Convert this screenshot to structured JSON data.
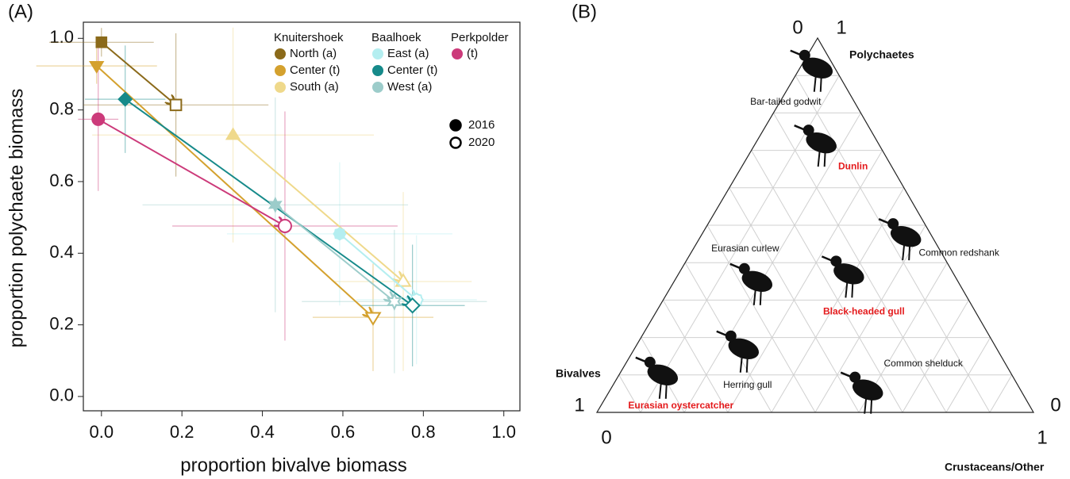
{
  "chart_data": [
    {
      "type": "scatter",
      "panel_label": "(A)",
      "xlabel": "proportion bivalve biomass",
      "ylabel": "proportion polychaete biomass",
      "xlim": [
        -0.045,
        1.04
      ],
      "ylim": [
        -0.04,
        1.045
      ],
      "xticks": [
        {
          "value": 0,
          "label": "0.0"
        },
        {
          "value": 0.2,
          "label": "0.2"
        },
        {
          "value": 0.4,
          "label": "0.4"
        },
        {
          "value": 0.6,
          "label": "0.6"
        },
        {
          "value": 0.8,
          "label": "0.8"
        },
        {
          "value": 1,
          "label": "1.0"
        }
      ],
      "yticks": [
        {
          "value": 0,
          "label": "0.0"
        },
        {
          "value": 0.2,
          "label": "0.2"
        },
        {
          "value": 0.4,
          "label": "0.4"
        },
        {
          "value": 0.6,
          "label": "0.6"
        },
        {
          "value": 0.8,
          "label": "0.8"
        },
        {
          "value": 1,
          "label": "1.0"
        }
      ],
      "year_labels": [
        "2016",
        "2020"
      ],
      "groups": [
        {
          "name": "Knuitershoek",
          "series": [
            {
              "name": "North (a)",
              "color": "#8b6a1a",
              "marker": "square",
              "x": [
                0.0,
                0.185
              ],
              "y": [
                0.989,
                0.814
              ],
              "x_err": [
                0.13,
                0.23
              ],
              "y_err": [
                0.04,
                0.2
              ]
            },
            {
              "name": "Center (t)",
              "color": "#d4a12e",
              "marker": "triangle-down",
              "x": [
                -0.012,
                0.675
              ],
              "y": [
                0.923,
                0.221
              ],
              "x_err": [
                0.15,
                0.15
              ],
              "y_err": [
                0.05,
                0.15
              ]
            },
            {
              "name": "South (a)",
              "color": "#efd98b",
              "marker": "triangle-up",
              "x": [
                0.327,
                0.75
              ],
              "y": [
                0.73,
                0.321
              ],
              "x_err": [
                0.35,
                0.17
              ],
              "y_err": [
                0.3,
                0.25
              ]
            }
          ]
        },
        {
          "name": "Baalhoek",
          "series": [
            {
              "name": "East (a)",
              "color": "#b4eef0",
              "marker": "octagon",
              "x": [
                0.592,
                0.783
              ],
              "y": [
                0.454,
                0.27
              ],
              "x_err": [
                0.28,
                0.15
              ],
              "y_err": [
                0.2,
                0.18
              ]
            },
            {
              "name": "Center (t)",
              "color": "#168a8a",
              "marker": "diamond",
              "x": [
                0.059,
                0.773
              ],
              "y": [
                0.83,
                0.254
              ],
              "x_err": [
                0.1,
                0.13
              ],
              "y_err": [
                0.15,
                0.17
              ]
            },
            {
              "name": "West (a)",
              "color": "#9cccca",
              "marker": "star",
              "x": [
                0.432,
                0.728
              ],
              "y": [
                0.535,
                0.265
              ],
              "x_err": [
                0.33,
                0.23
              ],
              "y_err": [
                0.3,
                0.2
              ]
            }
          ]
        },
        {
          "name": "Perkpolder",
          "series": [
            {
              "name": "(t)",
              "color": "#cc3a7a",
              "marker": "circle",
              "x": [
                -0.008,
                0.456
              ],
              "y": [
                0.774,
                0.476
              ],
              "x_err": [
                0.05,
                0.28
              ],
              "y_err": [
                0.2,
                0.32
              ]
            }
          ]
        }
      ]
    },
    {
      "type": "ternary",
      "panel_label": "(B)",
      "grid": true,
      "axes": [
        "Polychaetes",
        "Bivalves",
        "Crustaceans/Other"
      ],
      "apex_ticks": [
        0,
        1
      ],
      "left_ticks": [
        1,
        0
      ],
      "right_ticks": [
        0,
        1
      ],
      "birds": [
        {
          "name": "Bar-tailed godwit",
          "label_color": "#111111",
          "bold": false,
          "composition": [
            0.92,
            0.04,
            0.04
          ]
        },
        {
          "name": "Dunlin",
          "label_color": "#e41a1c",
          "bold": true,
          "composition": [
            0.72,
            0.13,
            0.15
          ]
        },
        {
          "name": "Common redshank",
          "label_color": "#111111",
          "bold": false,
          "composition": [
            0.47,
            0.06,
            0.47
          ]
        },
        {
          "name": "Eurasian curlew",
          "label_color": "#111111",
          "bold": false,
          "composition": [
            0.35,
            0.46,
            0.19
          ]
        },
        {
          "name": "Black-headed gull",
          "label_color": "#e41a1c",
          "bold": true,
          "composition": [
            0.37,
            0.24,
            0.39
          ]
        },
        {
          "name": "Herring gull",
          "label_color": "#111111",
          "bold": false,
          "composition": [
            0.17,
            0.58,
            0.25
          ]
        },
        {
          "name": "Common shelduck",
          "label_color": "#111111",
          "bold": false,
          "composition": [
            0.06,
            0.35,
            0.59
          ]
        },
        {
          "name": "Eurasian oystercatcher",
          "label_color": "#e41a1c",
          "bold": true,
          "composition": [
            0.1,
            0.8,
            0.1
          ]
        }
      ]
    }
  ]
}
